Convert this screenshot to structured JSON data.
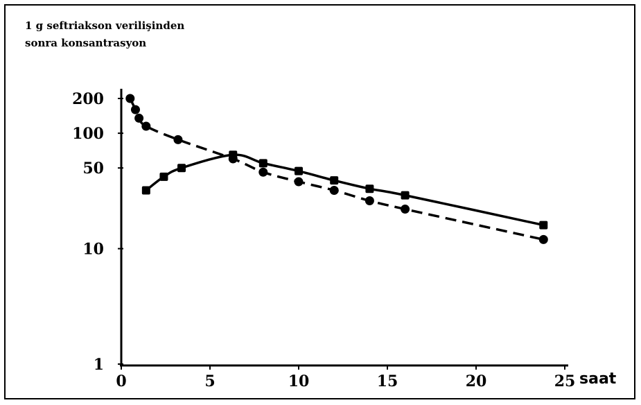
{
  "chart_data": {
    "type": "line",
    "title_lines": [
      "1 g seftriakson verilişinden",
      "sonra konsantrasyon"
    ],
    "xlabel": "saat",
    "ylabel": "",
    "x_ticks": [
      0,
      5,
      10,
      15,
      20,
      25
    ],
    "y_ticks": [
      200,
      100,
      50,
      10,
      1
    ],
    "xlim": [
      0,
      25
    ],
    "ylim": [
      1,
      200
    ],
    "y_scale": "log",
    "grid": false,
    "series": [
      {
        "style": "dashed-circle",
        "x": [
          0.5,
          0.8,
          1.0,
          1.4,
          3.2,
          6.3,
          8.0,
          10.0,
          12.0,
          14.0,
          16.0,
          23.8
        ],
        "y": [
          200,
          160,
          135,
          115,
          88,
          60,
          46,
          38,
          32,
          26,
          22,
          12
        ]
      },
      {
        "style": "solid-square",
        "x": [
          1.4,
          2.4,
          3.4,
          6.3,
          8.0,
          10.0,
          12.0,
          14.0,
          16.0,
          23.8
        ],
        "y": [
          32,
          42,
          50,
          65,
          55,
          47,
          39,
          33,
          29,
          16
        ]
      }
    ]
  }
}
